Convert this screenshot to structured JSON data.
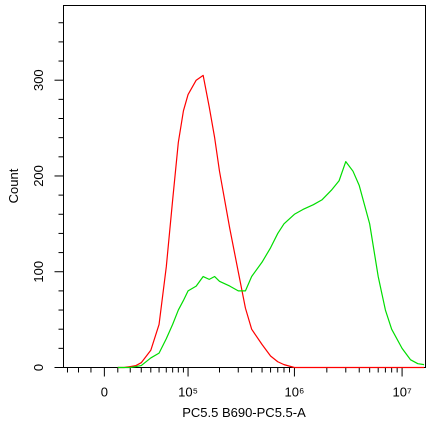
{
  "chart_data": {
    "type": "line",
    "xlabel": "PC5.5 B690-PC5.5-A",
    "ylabel": "Count",
    "xscale": "arcsinh",
    "xscale_cofactor": 34360,
    "xlim": [
      -34000,
      16500000
    ],
    "ylim": [
      0,
      378
    ],
    "xticks": [
      0,
      {
        "value": 100000,
        "label": "10⁵"
      },
      {
        "value": 1000000,
        "label": "10⁶"
      },
      {
        "value": 10000000,
        "label": "10⁷"
      }
    ],
    "xminor_ticks": [
      -30000,
      -20000,
      -10000,
      10000,
      20000,
      30000,
      40000,
      50000,
      60000,
      70000,
      80000,
      90000,
      200000,
      300000,
      400000,
      500000,
      600000,
      700000,
      800000,
      900000,
      2000000,
      3000000,
      4000000,
      5000000,
      6000000,
      7000000,
      8000000,
      9000000
    ],
    "yticks": [
      0,
      100,
      200,
      300
    ],
    "yminor_ticks": [
      20,
      40,
      60,
      80,
      120,
      140,
      160,
      180,
      220,
      240,
      260,
      280,
      320,
      340,
      360
    ],
    "x": [
      10000,
      15000,
      20000,
      25000,
      30000,
      40000,
      50000,
      60000,
      70000,
      80000,
      90000,
      100000,
      120000,
      140000,
      160000,
      180000,
      200000,
      250000,
      300000,
      350000,
      400000,
      500000,
      600000,
      700000,
      800000,
      1000000,
      1200000,
      1500000,
      1800000,
      2200000,
      2600000,
      3000000,
      3500000,
      4000000,
      5000000,
      6000000,
      7000000,
      8000000,
      10000000,
      12000000,
      14000000,
      16000000
    ],
    "series": [
      {
        "color": "#ff0000",
        "values": [
          0,
          0,
          1,
          2,
          5,
          18,
          45,
          105,
          175,
          235,
          268,
          285,
          300,
          305,
          272,
          240,
          205,
          145,
          100,
          62,
          40,
          24,
          12,
          6,
          3,
          0,
          0,
          0,
          0,
          0,
          0,
          0,
          0,
          0,
          0,
          0,
          0,
          0,
          0,
          0,
          0,
          0
        ]
      },
      {
        "color": "#00dd00",
        "values": [
          0,
          0,
          0,
          1,
          2,
          10,
          15,
          30,
          45,
          60,
          70,
          80,
          85,
          95,
          92,
          95,
          90,
          85,
          80,
          80,
          95,
          110,
          125,
          140,
          150,
          160,
          165,
          170,
          175,
          185,
          195,
          215,
          205,
          190,
          150,
          95,
          60,
          40,
          20,
          8,
          4,
          3
        ]
      }
    ]
  }
}
